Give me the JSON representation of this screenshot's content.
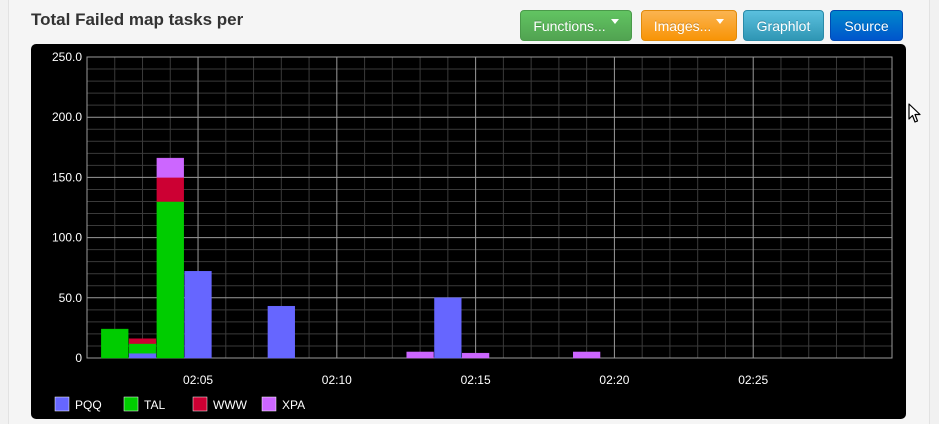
{
  "panel": {
    "title": "Total Failed map tasks per"
  },
  "toolbar": {
    "functions_label": "Functions...",
    "images_label": "Images...",
    "graphlot_label": "Graphlot",
    "source_label": "Source"
  },
  "colors": {
    "PQQ": "#6666ff",
    "TAL": "#00cc00",
    "WWW": "#cc0033",
    "XPA": "#cc66ff"
  },
  "chart_data": {
    "type": "area",
    "stacked": true,
    "background": "#000000",
    "grid": true,
    "legend_position": "bottom",
    "ylim": [
      0,
      250
    ],
    "yticks": [
      "250.0",
      "200.0",
      "150.0",
      "100.0",
      "50.0",
      "0"
    ],
    "ytick_values": [
      250,
      200,
      150,
      100,
      50,
      0
    ],
    "xlim_minutes": [
      1,
      30
    ],
    "xticks": [
      "02:05",
      "02:10",
      "02:15",
      "02:20",
      "02:25"
    ],
    "xtick_values": [
      5,
      10,
      15,
      20,
      25
    ],
    "x": [
      2,
      3,
      4,
      5,
      6,
      7,
      8,
      9,
      10,
      11,
      12,
      13,
      14,
      15,
      16,
      17,
      18,
      19,
      20,
      21,
      22,
      23,
      24,
      25,
      26,
      27,
      28,
      29
    ],
    "series": [
      {
        "name": "PQQ",
        "values": [
          0,
          4,
          0,
          72,
          0,
          0,
          43,
          0,
          0,
          0,
          0,
          0,
          50,
          0,
          0,
          0,
          0,
          0,
          0,
          0,
          0,
          0,
          0,
          0,
          0,
          0,
          0,
          0
        ]
      },
      {
        "name": "TAL",
        "values": [
          24,
          8,
          130,
          0,
          0,
          0,
          0,
          0,
          0,
          0,
          0,
          0,
          0,
          0,
          0,
          0,
          0,
          0,
          0,
          0,
          0,
          0,
          0,
          0,
          0,
          0,
          0,
          0
        ]
      },
      {
        "name": "WWW",
        "values": [
          0,
          4,
          20,
          0,
          0,
          0,
          0,
          0,
          0,
          0,
          0,
          0,
          0,
          0,
          0,
          0,
          0,
          0,
          0,
          0,
          0,
          0,
          0,
          0,
          0,
          0,
          0,
          0
        ]
      },
      {
        "name": "XPA",
        "values": [
          0,
          0,
          16,
          0,
          0,
          0,
          0,
          0,
          0,
          0,
          0,
          5,
          0,
          4,
          0,
          0,
          0,
          5,
          0,
          0,
          0,
          0,
          0,
          0,
          0,
          0,
          0,
          0
        ]
      }
    ]
  }
}
